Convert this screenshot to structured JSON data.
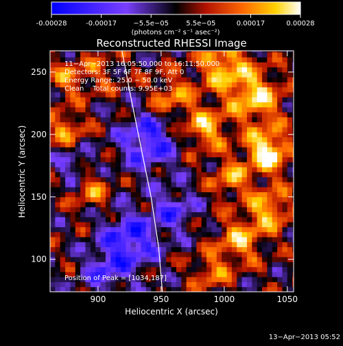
{
  "colorbar": {
    "tick_labels": [
      "-0.00028",
      "-0.00017",
      "−5.5e−05",
      "5.5e−05",
      "0.00017",
      "0.00028"
    ],
    "units": "(photons cm⁻² s⁻¹ asec⁻²)",
    "range": [
      -0.00028,
      0.00028
    ],
    "colors": [
      "#0000ff",
      "#7a3fff",
      "#000000",
      "#b31200",
      "#ff6a00",
      "#ffd200",
      "#ffffff"
    ]
  },
  "info": {
    "time_range": "11−Apr−2013 16:05:50.000 to 16:11:50.000",
    "detectors": "Detectors: 3F 5F 6F 7F 8F 9F, Att 0",
    "energy": "Energy Range: 25.0 − 50.0 keV",
    "method": "Clean    Total counts: 9.95E+03",
    "peak": "Position of Peak = [1034,187]"
  },
  "footer": {
    "timestamp": "13−Apr−2013 05:52"
  },
  "chart_data": {
    "type": "heatmap",
    "title": "Reconstructed RHESSI Image",
    "xlabel": "Heliocentric X (arcsec)",
    "ylabel": "Heliocentric Y (arcsec)",
    "xlim": [
      862,
      1055
    ],
    "ylim": [
      74,
      267
    ],
    "xticks": [
      900,
      950,
      1000,
      1050
    ],
    "yticks": [
      100,
      150,
      200,
      250
    ],
    "peak": {
      "x": 1034,
      "y": 187
    },
    "limb_curve": [
      [
        919,
        267
      ],
      [
        926,
        230
      ],
      [
        934,
        190
      ],
      [
        942,
        150
      ],
      [
        948,
        110
      ],
      [
        951,
        74
      ]
    ],
    "features": [
      {
        "x": 1034,
        "y": 187,
        "sigma": 12,
        "amp": 1.0
      },
      {
        "x": 1025,
        "y": 230,
        "sigma": 14,
        "amp": 0.8
      },
      {
        "x": 985,
        "y": 205,
        "sigma": 12,
        "amp": 0.7
      },
      {
        "x": 1000,
        "y": 255,
        "sigma": 14,
        "amp": 0.75
      },
      {
        "x": 958,
        "y": 230,
        "sigma": 12,
        "amp": 0.55
      },
      {
        "x": 1005,
        "y": 165,
        "sigma": 10,
        "amp": 0.6
      },
      {
        "x": 1035,
        "y": 140,
        "sigma": 12,
        "amp": 0.7
      },
      {
        "x": 1012,
        "y": 115,
        "sigma": 12,
        "amp": 0.65
      },
      {
        "x": 990,
        "y": 90,
        "sigma": 10,
        "amp": 0.5
      },
      {
        "x": 875,
        "y": 205,
        "sigma": 10,
        "amp": 0.55
      },
      {
        "x": 895,
        "y": 155,
        "sigma": 10,
        "amp": 0.5
      },
      {
        "x": 875,
        "y": 245,
        "sigma": 10,
        "amp": 0.45
      },
      {
        "x": 900,
        "y": 250,
        "sigma": 12,
        "amp": 0.3
      },
      {
        "x": 940,
        "y": 195,
        "sigma": 16,
        "amp": -0.75
      },
      {
        "x": 925,
        "y": 115,
        "sigma": 16,
        "amp": -0.8
      },
      {
        "x": 960,
        "y": 140,
        "sigma": 12,
        "amp": -0.55
      },
      {
        "x": 905,
        "y": 90,
        "sigma": 12,
        "amp": -0.5
      },
      {
        "x": 880,
        "y": 175,
        "sigma": 10,
        "amp": -0.4
      }
    ]
  }
}
